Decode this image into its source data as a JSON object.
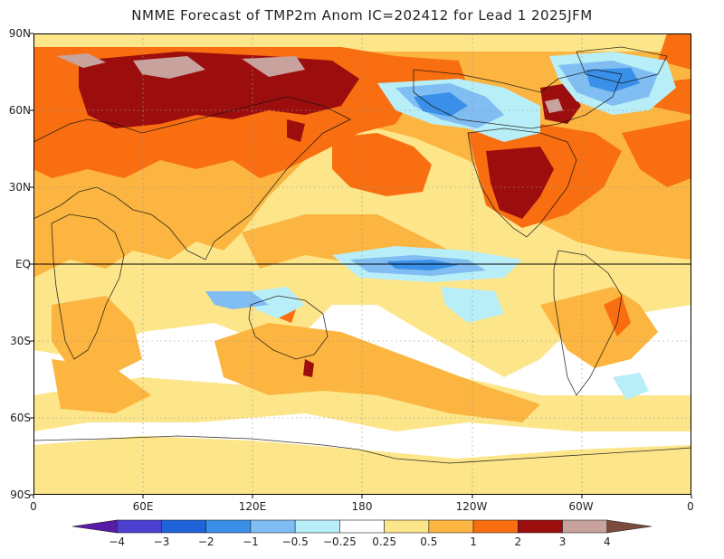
{
  "title": "NMME Forecast of TMP2m Anom IC=202412 for Lead 1 2025JFM",
  "lat_labels": [
    "90N",
    "60N",
    "30N",
    "EQ",
    "30S",
    "60S",
    "90S"
  ],
  "lon_labels": [
    "0",
    "60E",
    "120E",
    "180",
    "120W",
    "60W",
    "0"
  ],
  "colorbar": {
    "labels": [
      "-4",
      "-3",
      "-2",
      "-1",
      "-0.5",
      "-0.25",
      "0.25",
      "0.5",
      "1",
      "2",
      "3",
      "4"
    ],
    "colors": [
      "#5a1aa8",
      "#4b3fd0",
      "#1e63d8",
      "#3a8fe8",
      "#80bdf2",
      "#b8eef7",
      "#ffffff",
      "#fde58a",
      "#fbb540",
      "#f86e10",
      "#9c0e0e",
      "#c8a29c",
      "#7a4b3e"
    ]
  },
  "palette": {
    "warm1": "#fde58a",
    "warm2": "#fbb540",
    "warm3": "#f86e10",
    "warm4": "#9c0e0e",
    "warm5": "#c8a29c",
    "cool1": "#b8eef7",
    "cool2": "#80bdf2",
    "cool3": "#3a8fe8",
    "cool4": "#1e63d8"
  }
}
